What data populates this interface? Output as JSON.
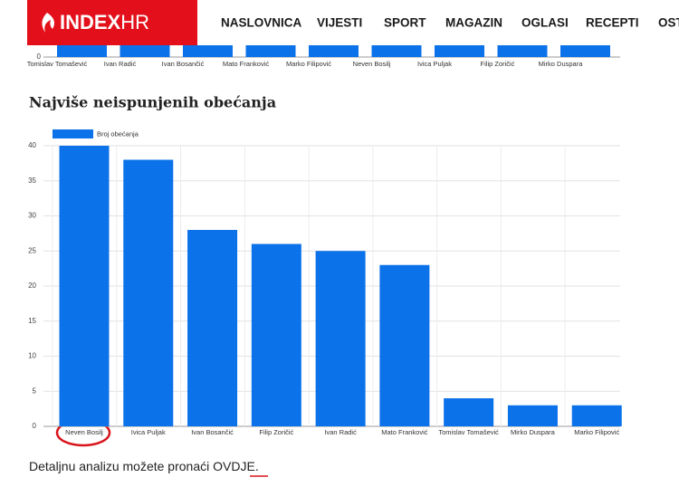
{
  "header": {
    "logo_main": "INDEX",
    "logo_sub": "HR",
    "nav": [
      "NASLOVNICA",
      "VIJESTI",
      "SPORT",
      "MAGAZIN",
      "OGLASI",
      "RECEPTI",
      "OST"
    ]
  },
  "top_chart": {
    "categories": [
      "Tomislav Tomašević",
      "Ivan Radić",
      "Ivan Bosančić",
      "Mato Franković",
      "Marko Filipović",
      "Neven Bosilj",
      "Ivica Puljak",
      "Filip Zoričić",
      "Mirko Duspara"
    ],
    "yticks": [
      0
    ]
  },
  "chart_data": {
    "type": "bar",
    "title": "Najviše neispunjenih obećanja",
    "categories": [
      "Neven Bosilj",
      "Ivica Puljak",
      "Ivan Bosančić",
      "Filip Zoričić",
      "Ivan Radić",
      "Mato Franković",
      "Tomislav Tomašević",
      "Mirko Duspara",
      "Marko Filipović"
    ],
    "series": [
      {
        "name": "Broj obećanja",
        "color": "#0b72ea",
        "values": [
          40,
          38,
          28,
          26,
          25,
          23,
          4,
          3,
          3
        ]
      }
    ],
    "ylim": [
      0,
      40
    ],
    "yticks": [
      0,
      5,
      10,
      15,
      20,
      25,
      30,
      35,
      40
    ],
    "grid": true,
    "legend": "top-left"
  },
  "footer": {
    "text": "Detaljnu analizu možete pronaći ",
    "link": "OVDJE",
    "end": "."
  }
}
